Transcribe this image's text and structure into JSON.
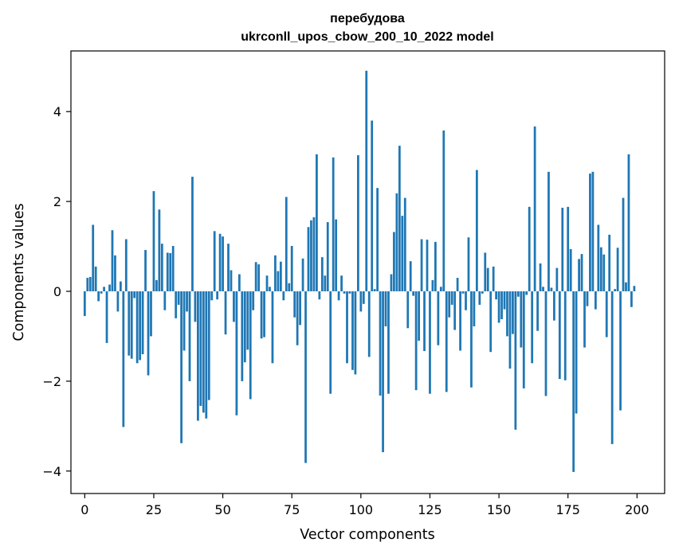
{
  "chart_data": {
    "type": "bar",
    "title_line1": "перебудова",
    "title_line2": "ukrconll_upos_cbow_200_10_2022 model",
    "xlabel": "Vector components",
    "ylabel": "Components values",
    "xlim": [
      -5,
      210
    ],
    "ylim": [
      -4.5,
      5.35
    ],
    "xticks": [
      0,
      25,
      50,
      75,
      100,
      125,
      150,
      175,
      200
    ],
    "xtick_labels": [
      "0",
      "25",
      "50",
      "75",
      "100",
      "125",
      "150",
      "175",
      "200"
    ],
    "yticks": [
      -4,
      -2,
      0,
      2,
      4
    ],
    "ytick_labels": [
      "−4",
      "−2",
      "0",
      "2",
      "4"
    ],
    "bar_color": "#1f77b4",
    "x": [
      0,
      1,
      2,
      3,
      4,
      5,
      6,
      7,
      8,
      9,
      10,
      11,
      12,
      13,
      14,
      15,
      16,
      17,
      18,
      19,
      20,
      21,
      22,
      23,
      24,
      25,
      26,
      27,
      28,
      29,
      30,
      31,
      32,
      33,
      34,
      35,
      36,
      37,
      38,
      39,
      40,
      41,
      42,
      43,
      44,
      45,
      46,
      47,
      48,
      49,
      50,
      51,
      52,
      53,
      54,
      55,
      56,
      57,
      58,
      59,
      60,
      61,
      62,
      63,
      64,
      65,
      66,
      67,
      68,
      69,
      70,
      71,
      72,
      73,
      74,
      75,
      76,
      77,
      78,
      79,
      80,
      81,
      82,
      83,
      84,
      85,
      86,
      87,
      88,
      89,
      90,
      91,
      92,
      93,
      94,
      95,
      96,
      97,
      98,
      99,
      100,
      101,
      102,
      103,
      104,
      105,
      106,
      107,
      108,
      109,
      110,
      111,
      112,
      113,
      114,
      115,
      116,
      117,
      118,
      119,
      120,
      121,
      122,
      123,
      124,
      125,
      126,
      127,
      128,
      129,
      130,
      131,
      132,
      133,
      134,
      135,
      136,
      137,
      138,
      139,
      140,
      141,
      142,
      143,
      144,
      145,
      146,
      147,
      148,
      149,
      150,
      151,
      152,
      153,
      154,
      155,
      156,
      157,
      158,
      159,
      160,
      161,
      162,
      163,
      164,
      165,
      166,
      167,
      168,
      169,
      170,
      171,
      172,
      173,
      174,
      175,
      176,
      177,
      178,
      179,
      180,
      181,
      182,
      183,
      184,
      185,
      186,
      187,
      188,
      189,
      190,
      191,
      192,
      193,
      194,
      195,
      196,
      197,
      198,
      199
    ],
    "values": [
      -0.55,
      0.3,
      0.32,
      1.48,
      0.55,
      -0.22,
      -0.05,
      0.1,
      -1.15,
      0.15,
      1.36,
      0.8,
      -0.45,
      0.22,
      -3.02,
      1.16,
      -1.43,
      -1.5,
      -0.15,
      -1.6,
      -1.53,
      -1.4,
      0.92,
      -1.87,
      -1.0,
      2.23,
      0.25,
      1.82,
      1.06,
      -0.42,
      0.86,
      0.85,
      1.01,
      -0.6,
      -0.3,
      -3.38,
      -1.32,
      -0.45,
      -2.0,
      2.55,
      -0.68,
      -2.88,
      -2.55,
      -2.7,
      -2.83,
      -2.42,
      -0.2,
      1.34,
      -0.18,
      1.28,
      1.22,
      -0.96,
      1.06,
      0.47,
      -0.68,
      -2.76,
      0.38,
      -2.0,
      -1.58,
      -1.3,
      -2.4,
      -0.42,
      0.65,
      0.6,
      -1.05,
      -1.02,
      0.35,
      0.1,
      -1.6,
      0.8,
      0.45,
      0.66,
      -0.2,
      2.1,
      0.18,
      1.01,
      -0.58,
      -1.2,
      -0.75,
      0.73,
      -3.82,
      1.43,
      1.58,
      1.65,
      3.05,
      -0.18,
      0.76,
      0.35,
      1.54,
      -2.28,
      2.98,
      1.6,
      -0.2,
      0.35,
      -0.05,
      -1.6,
      -0.05,
      -1.75,
      -1.85,
      3.03,
      -0.45,
      -0.28,
      4.91,
      -1.46,
      3.8,
      0.05,
      2.3,
      -2.32,
      -3.58,
      -0.78,
      -2.28,
      0.38,
      1.32,
      2.18,
      3.24,
      1.68,
      2.08,
      -0.82,
      0.67,
      -0.1,
      -2.2,
      -1.1,
      1.16,
      -1.33,
      1.15,
      -2.28,
      0.25,
      1.1,
      -1.2,
      0.1,
      3.58,
      -2.24,
      -0.58,
      -0.3,
      -0.86,
      0.3,
      -1.32,
      -0.05,
      -0.42,
      1.2,
      -2.14,
      -0.78,
      2.7,
      -0.3,
      -0.05,
      0.86,
      0.52,
      -1.35,
      0.55,
      -0.18,
      -0.7,
      -0.62,
      -0.4,
      -1.0,
      -1.72,
      -0.95,
      -3.08,
      -0.12,
      -1.25,
      -2.16,
      -0.08,
      1.88,
      -1.6,
      3.67,
      -0.88,
      0.62,
      0.1,
      -2.33,
      2.66,
      0.08,
      -0.65,
      0.52,
      -1.95,
      1.86,
      -1.98,
      1.88,
      0.94,
      -4.02,
      -2.72,
      0.72,
      0.83,
      -1.25,
      -0.33,
      2.62,
      2.66,
      -0.4,
      1.48,
      0.98,
      0.82,
      -1.02,
      1.26,
      -3.4,
      0.05,
      0.97,
      -2.65,
      2.08,
      0.2,
      3.05,
      -0.35,
      0.12
    ]
  }
}
